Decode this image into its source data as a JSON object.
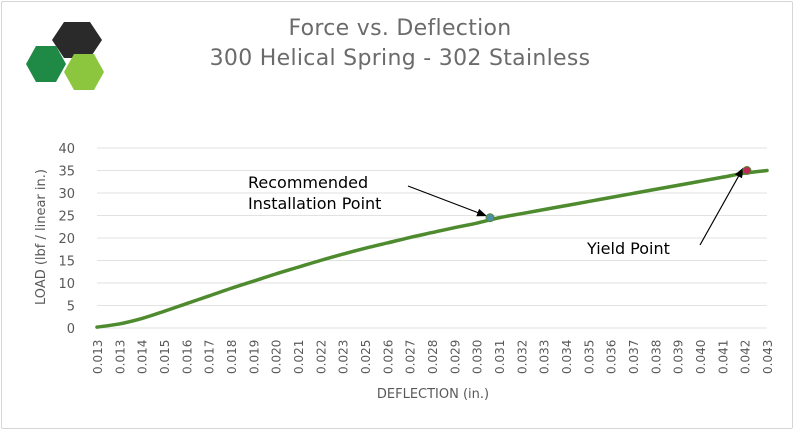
{
  "colors": {
    "logo_dark": "#2a2a2a",
    "logo_green": "#1e8a45",
    "logo_lime": "#8cc63f",
    "series": "#4e8a2e",
    "grid": "#e2e2e2",
    "text": "#595959",
    "marker_install": "#4f8ea8",
    "marker_yield": "#c0285a"
  },
  "logo": {
    "icon": "hexagon-logo-icon"
  },
  "chart_data": {
    "type": "line",
    "title": "Force vs. Deflection",
    "subtitle": "300 Helical Spring - 302 Stainless",
    "xlabel": "DEFLECTION (in.)",
    "ylabel": "LOAD (lbf / linear in.)",
    "ylim": [
      0,
      40
    ],
    "yticks": [
      0,
      5,
      10,
      15,
      20,
      25,
      30,
      35,
      40
    ],
    "categories": [
      "0.013",
      "0.013",
      "0.014",
      "0.015",
      "0.016",
      "0.017",
      "0.018",
      "0.019",
      "0.020",
      "0.021",
      "0.022",
      "0.023",
      "0.025",
      "0.026",
      "0.027",
      "0.028",
      "0.029",
      "0.030",
      "0.031",
      "0.032",
      "0.033",
      "0.034",
      "0.035",
      "0.036",
      "0.037",
      "0.038",
      "0.039",
      "0.040",
      "0.041",
      "0.042",
      "0.043"
    ],
    "series": [
      {
        "values": [
          0.2,
          0.9,
          2.1,
          3.7,
          5.4,
          7.1,
          8.8,
          10.4,
          12.0,
          13.5,
          15.0,
          16.4,
          17.7,
          18.9,
          20.1,
          21.2,
          22.3,
          23.3,
          24.5,
          25.4,
          26.3,
          27.2,
          28.1,
          29.0,
          29.9,
          30.8,
          31.7,
          32.6,
          33.5,
          34.4,
          35.0
        ]
      }
    ],
    "grid": true,
    "legend": "none",
    "annotations": [
      {
        "text": [
          "Recommended",
          "Installation Point"
        ],
        "x_index": 17.6,
        "y": 24.5,
        "marker": "install"
      },
      {
        "text": [
          "Yield Point"
        ],
        "x_index": 29.1,
        "y": 35.0,
        "marker": "yield"
      }
    ]
  }
}
